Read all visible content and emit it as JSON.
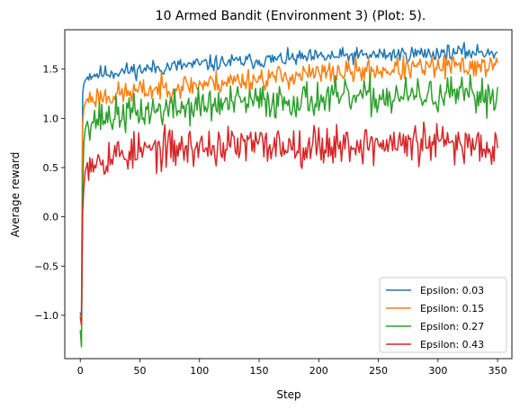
{
  "chart_data": {
    "type": "line",
    "title": "10 Armed Bandit (Environment 3) (Plot: 5).",
    "xlabel": "Step",
    "ylabel": "Average reward",
    "xlim": [
      -13,
      362
    ],
    "ylim": [
      -1.44,
      1.9
    ],
    "xticks": [
      0,
      50,
      100,
      150,
      200,
      250,
      300,
      350
    ],
    "yticks": [
      -1.0,
      -0.5,
      0.0,
      0.5,
      1.0,
      1.5
    ],
    "ytick_labels": [
      "−1.0",
      "−0.5",
      "0.0",
      "0.5",
      "1.0",
      "1.5"
    ],
    "legend_position": "lower-right",
    "n_steps": 350,
    "series": [
      {
        "name": "Epsilon: 0.03",
        "color": "#1f77b4",
        "start": [
          -0.97,
          -1.05,
          1.25,
          1.35,
          1.38,
          1.4,
          1.42
        ],
        "base": 1.44,
        "end": 1.73,
        "tau": 200,
        "noise": 0.04,
        "seed": 11
      },
      {
        "name": "Epsilon: 0.15",
        "color": "#ff7f0e",
        "start": [
          -1.0,
          -1.08,
          0.95,
          1.1,
          1.15,
          1.18,
          1.2
        ],
        "base": 1.2,
        "end": 1.64,
        "tau": 230,
        "noise": 0.06,
        "seed": 23
      },
      {
        "name": "Epsilon: 0.27",
        "color": "#2ca02c",
        "start": [
          -1.15,
          -1.32,
          0.3,
          0.75,
          0.88,
          0.93,
          0.97
        ],
        "base": 0.98,
        "end": 1.25,
        "tau": 120,
        "noise": 0.09,
        "seed": 37
      },
      {
        "name": "Epsilon: 0.43",
        "color": "#d62728",
        "start": [
          -1.02,
          -1.1,
          0.05,
          0.3,
          0.45,
          0.5,
          0.55
        ],
        "base": 0.58,
        "end": 0.74,
        "tau": 60,
        "noise": 0.1,
        "seed": 53
      }
    ]
  }
}
